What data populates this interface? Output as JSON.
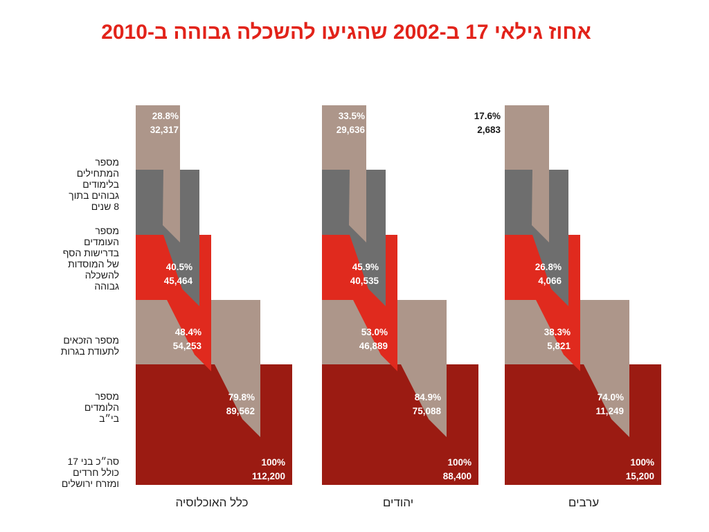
{
  "title": "אחוז גילאי 17 ב-2002 שהגיעו להשכלה גבוהה ב-2010",
  "row_labels": [
    "מספר\nהמתחילים\nבלימודים\nגבוהים בתוך\n8 שנים",
    "מספר\nהעומדים\nבדרישות הסף\nשל המוסדות\nלהשכלה\nגבוהה",
    "מספר הזכאים\nלתעודת בגרות",
    "מספר\nהלומדים\nבי״ב",
    "סה״כ בני 17\nכולל חרדים\nומזרח ירושלים"
  ],
  "colors": {
    "title": "#e2231a",
    "total": "#9b1b12",
    "studying": "#ad968a",
    "bagrut": "#e02a1e",
    "threshold": "#6e6e6e",
    "started": "#ad968a",
    "label_light": "#ffffff",
    "label_dark": "#1a1a1a"
  },
  "chart_data": {
    "type": "bar",
    "title": "אחוז גילאי 17 ב-2002 שהגיעו להשכלה גבוהה ב-2010",
    "stages": [
      "סה״כ בני 17",
      "לומדים בי״ב",
      "זכאים לבגרות",
      "עומדים בדרישות הסף",
      "מתחילים לימודים גבוהים"
    ],
    "groups": [
      {
        "name": "כלל האוכלוסיה",
        "percent": [
          "100%",
          "79.8%",
          "48.4%",
          "40.5%",
          "28.8%"
        ],
        "count": [
          "112,200",
          "89,562",
          "54,253",
          "45,464",
          "32,317"
        ]
      },
      {
        "name": "יהודים",
        "percent": [
          "100%",
          "84.9%",
          "53.0%",
          "45.9%",
          "33.5%"
        ],
        "count": [
          "88,400",
          "75,088",
          "46,889",
          "40,535",
          "29,636"
        ]
      },
      {
        "name": "ערבים",
        "percent": [
          "100%",
          "74.0%",
          "38.3%",
          "26.8%",
          "17.6%"
        ],
        "count": [
          "15,200",
          "11,249",
          "5,821",
          "4,066",
          "2,683"
        ]
      }
    ]
  }
}
